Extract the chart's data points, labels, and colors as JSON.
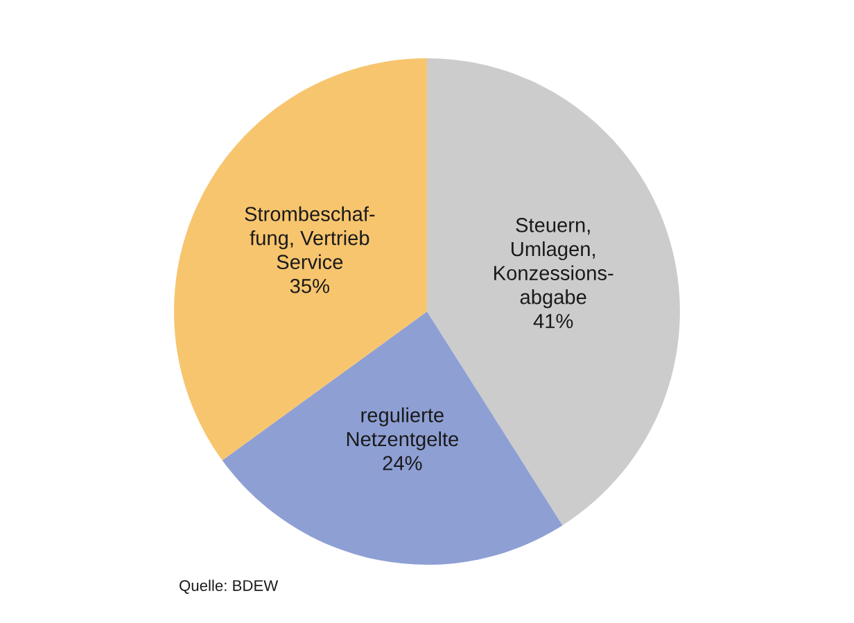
{
  "chart_data": {
    "type": "pie",
    "categories": [
      "Steuern,\nUmlagen,\nKonzessions-\nabgabe",
      "regulierte\nNetzentgelte",
      "Strombeschaf-\nfung, Vertrieb\nService"
    ],
    "values": [
      41,
      24,
      35
    ],
    "value_labels": [
      "41%",
      "24%",
      "35%"
    ],
    "colors": [
      "#cccccc",
      "#8e9fd4",
      "#f7c56e"
    ],
    "annotations": [
      "Quelle: BDEW"
    ]
  }
}
